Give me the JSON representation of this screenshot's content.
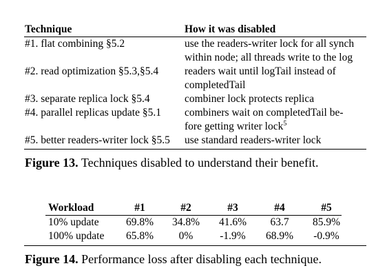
{
  "figure13": {
    "headers": [
      "Technique",
      "How it was disabled"
    ],
    "rows": [
      {
        "technique": "#1. flat combining §5.2",
        "lines": [
          "use the readers-writer lock for all synch",
          "within node; all threads write to the log"
        ]
      },
      {
        "technique": "#2. read optimization §5.3,§5.4",
        "lines": [
          "readers wait until logTail instead of",
          "completedTail"
        ]
      },
      {
        "technique": "#3. separate replica lock §5.4",
        "lines": [
          "combiner lock protects replica"
        ]
      },
      {
        "technique": "#4. parallel replicas update §5.1",
        "lines": [
          "combiners wait on completedTail be-",
          "fore getting writer lock"
        ],
        "footnote": "5"
      },
      {
        "technique": "#5. better readers-writer lock §5.5",
        "lines": [
          "use standard readers-writer lock"
        ]
      }
    ],
    "caption_label": "Figure 13.",
    "caption_text": "Techniques disabled to understand their benefit."
  },
  "figure14": {
    "headers": [
      "Workload",
      "#1",
      "#2",
      "#3",
      "#4",
      "#5"
    ],
    "rows": [
      [
        "10% update",
        "69.8%",
        "34.8%",
        "41.6%",
        "63.7",
        "85.9%"
      ],
      [
        "100% update",
        "65.8%",
        "0%",
        "-1.9%",
        "68.9%",
        "-0.9%"
      ]
    ],
    "caption_label": "Figure 14.",
    "caption_text": "Performance loss after disabling each technique."
  }
}
